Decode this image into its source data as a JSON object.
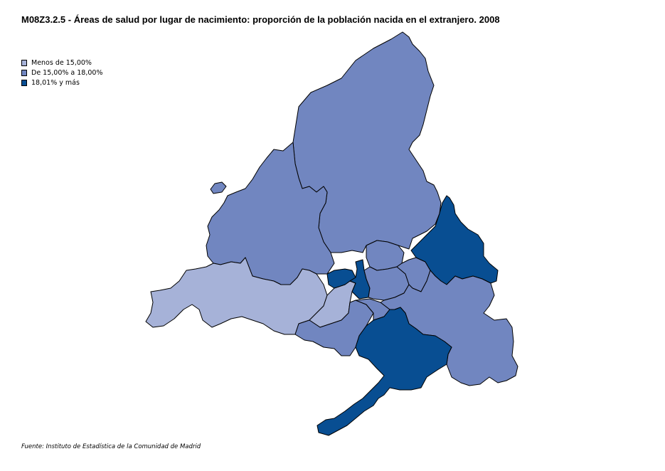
{
  "title": "M08Z3.2.5 - Áreas de salud por lugar de nacimiento: proporción de la población nacida en el extranjero. 2008",
  "legend": [
    {
      "label": "Menos de 15,00%",
      "color": "#a6b2d8"
    },
    {
      "label": "De 15,00% a 18,00%",
      "color": "#7186c0"
    },
    {
      "label": "18,01% y más",
      "color": "#084e92"
    }
  ],
  "source": "Fuente: Instituto de Estadística de la Comunidad de Madrid",
  "areas": [
    {
      "id": "north-sierra",
      "class": 1
    },
    {
      "id": "northwest-sierra",
      "class": 1
    },
    {
      "id": "northwest-islet",
      "class": 1
    },
    {
      "id": "west",
      "class": 0
    },
    {
      "id": "west-central",
      "class": 0
    },
    {
      "id": "southwest",
      "class": 1
    },
    {
      "id": "south-central",
      "class": 1
    },
    {
      "id": "capital-west",
      "class": 2
    },
    {
      "id": "capital-center",
      "class": 2
    },
    {
      "id": "capital-north",
      "class": 1
    },
    {
      "id": "capital-inner",
      "class": 1
    },
    {
      "id": "capital-east",
      "class": 1
    },
    {
      "id": "east-corridor",
      "class": 2
    },
    {
      "id": "southeast",
      "class": 1
    },
    {
      "id": "south",
      "class": 2
    }
  ]
}
